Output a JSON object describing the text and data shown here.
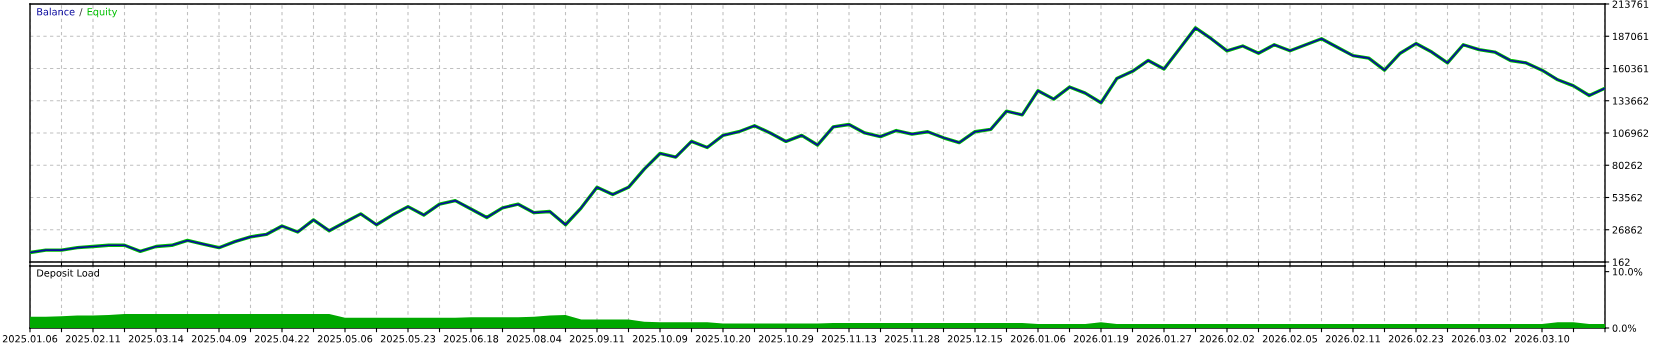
{
  "chart_data": [
    {
      "type": "line",
      "legend": "top left",
      "grid": true,
      "tick_labels": "y",
      "annotations": [
        "/"
      ],
      "ylim": [
        162,
        213761
      ],
      "yticks": [
        162,
        26862,
        53562,
        80262,
        106962,
        133662,
        160361,
        187061,
        213761
      ],
      "categories": [
        "2025.01.06",
        null,
        null,
        null,
        "2025.02.11",
        null,
        null,
        null,
        "2025.03.14",
        null,
        null,
        null,
        "2025.04.09",
        null,
        null,
        null,
        "2025.04.22",
        null,
        null,
        null,
        "2025.05.06",
        null,
        null,
        null,
        "2025.05.23",
        null,
        null,
        null,
        "2025.06.18",
        null,
        null,
        null,
        "2025.08.04",
        null,
        null,
        null,
        "2025.09.11",
        null,
        null,
        null,
        "2025.10.09",
        null,
        null,
        null,
        "2025.10.20",
        null,
        null,
        null,
        "2025.10.29",
        null,
        null,
        null,
        "2025.11.13",
        null,
        null,
        null,
        "2025.11.28",
        null,
        null,
        null,
        "2025.12.15",
        null,
        null,
        null,
        "2026.01.06",
        null,
        null,
        null,
        "2026.01.19",
        null,
        null,
        null,
        "2026.01.27",
        null,
        null,
        null,
        "2026.02.02",
        null,
        null,
        null,
        "2026.02.05",
        null,
        null,
        null,
        "2026.02.11",
        null,
        null,
        null,
        "2026.02.23",
        null,
        null,
        null,
        "2026.03.02",
        null,
        null,
        null,
        "2026.03.10",
        null,
        null,
        null,
        null
      ],
      "series": [
        {
          "name": "Balance",
          "color": "#0a0a9e",
          "values": [
            8000,
            10000,
            10000,
            12000,
            13000,
            14000,
            14000,
            9000,
            13000,
            14000,
            18000,
            15000,
            12000,
            17000,
            21000,
            23000,
            30000,
            25000,
            35000,
            26000,
            33000,
            40000,
            31000,
            39000,
            46000,
            39000,
            48000,
            51000,
            44000,
            37000,
            45000,
            48000,
            41000,
            42000,
            31000,
            45000,
            62000,
            56000,
            62000,
            77000,
            90000,
            87000,
            100000,
            95000,
            105000,
            108000,
            113000,
            107000,
            100000,
            105000,
            97000,
            112000,
            114000,
            107000,
            104000,
            109000,
            106000,
            108000,
            103000,
            99000,
            108000,
            110000,
            125000,
            122000,
            142000,
            135000,
            145000,
            140000,
            132000,
            152000,
            158000,
            167000,
            160000,
            177000,
            194000,
            185000,
            175000,
            179000,
            173000,
            180000,
            175000,
            180000,
            185000,
            178000,
            171000,
            169000,
            159000,
            173000,
            181000,
            174000,
            165000,
            180000,
            176000,
            174000,
            167000,
            165000,
            159000,
            151000,
            146000,
            138000,
            144000
          ]
        },
        {
          "name": "Equity",
          "color": "#00c000",
          "values": [
            8000,
            10000,
            10000,
            12000,
            13000,
            14000,
            14000,
            9000,
            13000,
            14000,
            18000,
            15000,
            12000,
            17000,
            21000,
            23000,
            30000,
            25000,
            35000,
            26000,
            33000,
            40000,
            31000,
            39000,
            46000,
            39000,
            48000,
            51000,
            44000,
            37000,
            45000,
            48000,
            41000,
            42000,
            31000,
            45000,
            62000,
            56000,
            62000,
            77000,
            90000,
            87000,
            100000,
            95000,
            105000,
            108000,
            113000,
            107000,
            100000,
            105000,
            97000,
            112000,
            114000,
            107000,
            104000,
            109000,
            106000,
            108000,
            103000,
            99000,
            108000,
            110000,
            125000,
            122000,
            142000,
            135000,
            145000,
            140000,
            132000,
            152000,
            158000,
            167000,
            160000,
            177000,
            194000,
            185000,
            175000,
            179000,
            173000,
            180000,
            175000,
            180000,
            185000,
            178000,
            171000,
            169000,
            159000,
            173000,
            181000,
            174000,
            165000,
            180000,
            176000,
            174000,
            167000,
            165000,
            159000,
            151000,
            146000,
            138000,
            144000
          ]
        }
      ]
    },
    {
      "type": "area",
      "title": "Deposit Load",
      "grid": "x",
      "ylim": [
        0,
        11
      ],
      "yticks": [
        {
          "value": 0,
          "label": "0.0%"
        },
        {
          "value": 10,
          "label": "10.0%"
        }
      ],
      "categories": [
        "2025.01.06",
        null,
        null,
        null,
        "2025.02.11",
        null,
        null,
        null,
        "2025.03.14",
        null,
        null,
        null,
        "2025.04.09",
        null,
        null,
        null,
        "2025.04.22",
        null,
        null,
        null,
        "2025.05.06",
        null,
        null,
        null,
        "2025.05.23",
        null,
        null,
        null,
        "2025.06.18",
        null,
        null,
        null,
        "2025.08.04",
        null,
        null,
        null,
        "2025.09.11",
        null,
        null,
        null,
        "2025.10.09",
        null,
        null,
        null,
        "2025.10.20",
        null,
        null,
        null,
        "2025.10.29",
        null,
        null,
        null,
        "2025.11.13",
        null,
        null,
        null,
        "2025.11.28",
        null,
        null,
        null,
        "2025.12.15",
        null,
        null,
        null,
        "2026.01.06",
        null,
        null,
        null,
        "2026.01.19",
        null,
        null,
        null,
        "2026.01.27",
        null,
        null,
        null,
        "2026.02.02",
        null,
        null,
        null,
        "2026.02.05",
        null,
        null,
        null,
        "2026.02.11",
        null,
        null,
        null,
        "2026.02.23",
        null,
        null,
        null,
        "2026.03.02",
        null,
        null,
        null,
        "2026.03.10",
        null,
        null,
        null,
        null
      ],
      "series": [
        {
          "color": "#00a800",
          "values": [
            2.0,
            2.0,
            2.1,
            2.2,
            2.2,
            2.3,
            2.5,
            2.5,
            2.5,
            2.5,
            2.5,
            2.5,
            2.5,
            2.5,
            2.5,
            2.5,
            2.5,
            2.5,
            2.5,
            2.5,
            1.8,
            1.8,
            1.8,
            1.8,
            1.8,
            1.8,
            1.8,
            1.8,
            1.9,
            1.9,
            1.9,
            1.9,
            2.0,
            2.2,
            2.3,
            1.5,
            1.5,
            1.5,
            1.5,
            1.1,
            1.0,
            1.0,
            1.0,
            1.0,
            0.8,
            0.8,
            0.8,
            0.8,
            0.8,
            0.8,
            0.8,
            0.9,
            0.9,
            0.9,
            0.9,
            0.9,
            0.9,
            0.9,
            0.9,
            0.9,
            0.9,
            0.9,
            0.9,
            0.9,
            0.7,
            0.7,
            0.7,
            0.7,
            1.0,
            0.7,
            0.7,
            0.7,
            0.7,
            0.7,
            0.7,
            0.7,
            0.7,
            0.7,
            0.7,
            0.7,
            0.7,
            0.7,
            0.7,
            0.7,
            0.7,
            0.7,
            0.7,
            0.7,
            0.7,
            0.7,
            0.7,
            0.7,
            0.7,
            0.7,
            0.7,
            0.7,
            0.7,
            1.0,
            1.0,
            0.7,
            0.7
          ]
        }
      ]
    }
  ]
}
